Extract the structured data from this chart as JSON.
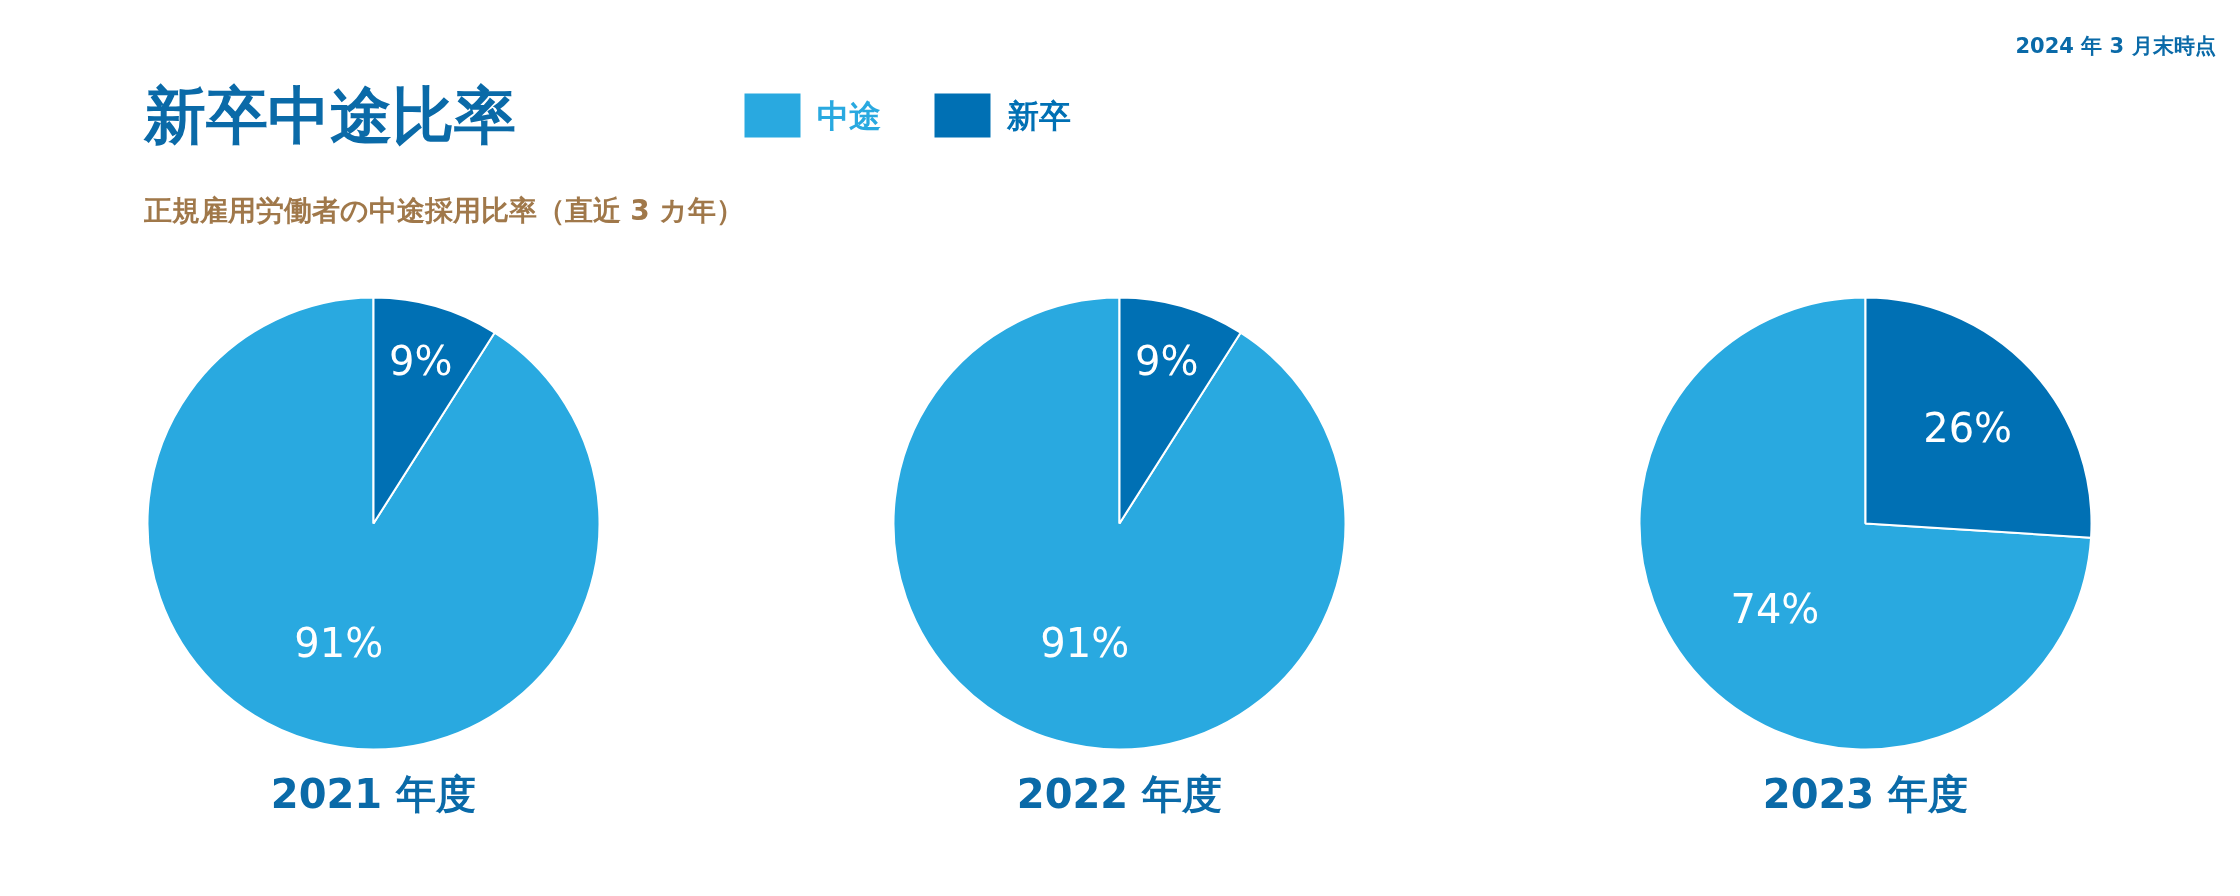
{
  "chart_data": [
    {
      "type": "pie",
      "title": "新卒中途比率",
      "subtitle": "正規雇用労働者の中途採用比率（直近 3 カ年）",
      "annotations": [
        "2024 年 3 月末時点"
      ],
      "xlabel": "2021 年度",
      "categories": [
        "中途",
        "新卒"
      ],
      "values": [
        91,
        9
      ],
      "value_labels": [
        "91%",
        "9%"
      ],
      "colors": [
        "#29a9e0",
        "#0070b4"
      ],
      "legend": "top"
    },
    {
      "type": "pie",
      "xlabel": "2022 年度",
      "categories": [
        null,
        null
      ],
      "values": [
        91,
        9
      ],
      "value_labels": [
        "91%",
        "9%"
      ],
      "colors": [
        "#29a9e0",
        "#0070b4"
      ]
    },
    {
      "type": "pie",
      "xlabel": "2023 年度",
      "categories": [
        null,
        null
      ],
      "values": [
        74,
        26
      ],
      "value_labels": [
        "74%",
        "26%"
      ],
      "colors": [
        "#29a9e0",
        "#0070b4"
      ]
    }
  ]
}
